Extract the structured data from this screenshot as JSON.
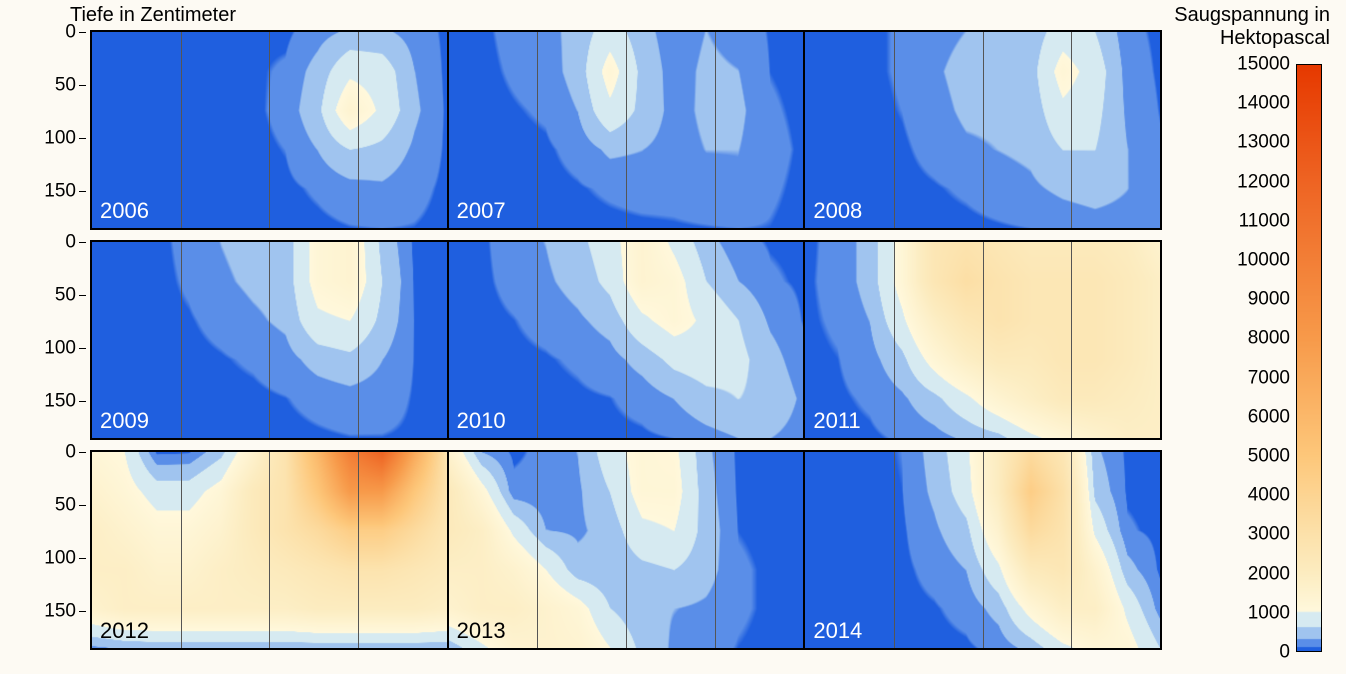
{
  "background_color": "#fdfaf3",
  "text_color": "#000000",
  "font_size_labels": 19,
  "font_size_titles": 20,
  "font_size_year": 22,
  "y_axis": {
    "title": "Tiefe in Zentimeter",
    "min": 0,
    "max": 185,
    "ticks": [
      0,
      50,
      100,
      150
    ]
  },
  "grid": {
    "quarter_lines": [
      0.25,
      0.5,
      0.75
    ],
    "line_color": "#555555",
    "line_width": 1
  },
  "colorbar": {
    "title": "Saugspannung in\nHektopascal",
    "min": 0,
    "max": 15000,
    "tick_step": 1000,
    "stops": [
      {
        "value": 0,
        "color": "#1f5fdf"
      },
      {
        "value": 90,
        "color": "#1f5fdf"
      },
      {
        "value": 100,
        "color": "#5a8ee8"
      },
      {
        "value": 290,
        "color": "#5a8ee8"
      },
      {
        "value": 300,
        "color": "#a0c4ef"
      },
      {
        "value": 590,
        "color": "#a0c4ef"
      },
      {
        "value": 600,
        "color": "#d6eaf1"
      },
      {
        "value": 990,
        "color": "#d6eaf1"
      },
      {
        "value": 1000,
        "color": "#fff8dc"
      },
      {
        "value": 2000,
        "color": "#fcecc0"
      },
      {
        "value": 3000,
        "color": "#fce1aa"
      },
      {
        "value": 5000,
        "color": "#fdc77a"
      },
      {
        "value": 8000,
        "color": "#f79a4a"
      },
      {
        "value": 12000,
        "color": "#ee6423"
      },
      {
        "value": 15000,
        "color": "#e63900"
      }
    ]
  },
  "rows": [
    {
      "cells": [
        {
          "year": "2006",
          "year_label_color": "white",
          "grid": [
            [
              40,
              40,
              40,
              40,
              60,
              70,
              60,
              200,
              350,
              350,
              200,
              60
            ],
            [
              40,
              40,
              40,
              40,
              60,
              70,
              120,
              400,
              900,
              800,
              300,
              60
            ],
            [
              40,
              40,
              40,
              40,
              50,
              60,
              150,
              500,
              1400,
              900,
              350,
              70
            ],
            [
              40,
              40,
              40,
              40,
              40,
              50,
              100,
              300,
              600,
              500,
              250,
              70
            ],
            [
              40,
              40,
              40,
              40,
              40,
              40,
              60,
              120,
              200,
              250,
              150,
              60
            ],
            [
              40,
              40,
              40,
              40,
              40,
              40,
              40,
              60,
              90,
              100,
              90,
              50
            ]
          ]
        },
        {
          "year": "2007",
          "year_label_color": "white",
          "grid": [
            [
              40,
              60,
              150,
              200,
              400,
              800,
              400,
              150,
              300,
              200,
              80,
              50
            ],
            [
              40,
              50,
              120,
              180,
              400,
              1200,
              500,
              180,
              350,
              300,
              90,
              50
            ],
            [
              40,
              40,
              80,
              120,
              300,
              900,
              500,
              200,
              350,
              350,
              120,
              60
            ],
            [
              40,
              40,
              50,
              70,
              150,
              350,
              300,
              200,
              300,
              300,
              150,
              70
            ],
            [
              40,
              40,
              40,
              50,
              80,
              120,
              150,
              150,
              200,
              250,
              120,
              60
            ],
            [
              40,
              40,
              40,
              40,
              50,
              60,
              70,
              80,
              90,
              100,
              90,
              50
            ]
          ]
        },
        {
          "year": "2008",
          "year_label_color": "white",
          "grid": [
            [
              40,
              50,
              60,
              120,
              200,
              300,
              350,
              400,
              800,
              600,
              150,
              60
            ],
            [
              40,
              50,
              60,
              120,
              250,
              400,
              400,
              450,
              1200,
              800,
              200,
              70
            ],
            [
              40,
              40,
              50,
              100,
              200,
              350,
              350,
              400,
              900,
              700,
              250,
              90
            ],
            [
              40,
              40,
              50,
              70,
              150,
              250,
              300,
              350,
              600,
              600,
              300,
              120
            ],
            [
              40,
              40,
              40,
              50,
              80,
              120,
              180,
              250,
              350,
              400,
              300,
              150
            ],
            [
              40,
              40,
              40,
              40,
              50,
              60,
              80,
              100,
              150,
              200,
              200,
              120
            ]
          ]
        }
      ]
    },
    {
      "cells": [
        {
          "year": "2009",
          "year_label_color": "white",
          "grid": [
            [
              50,
              50,
              50,
              150,
              300,
              400,
              400,
              1200,
              1400,
              500,
              60,
              50
            ],
            [
              50,
              50,
              50,
              120,
              250,
              350,
              400,
              1200,
              1400,
              600,
              80,
              50
            ],
            [
              50,
              50,
              50,
              80,
              150,
              250,
              350,
              900,
              1000,
              500,
              90,
              50
            ],
            [
              40,
              40,
              40,
              50,
              80,
              120,
              200,
              400,
              500,
              300,
              90,
              50
            ],
            [
              40,
              40,
              40,
              40,
              50,
              60,
              90,
              150,
              200,
              180,
              80,
              50
            ],
            [
              40,
              40,
              40,
              40,
              40,
              40,
              50,
              70,
              90,
              90,
              70,
              50
            ]
          ]
        },
        {
          "year": "2010",
          "year_label_color": "white",
          "grid": [
            [
              50,
              60,
              200,
              300,
              500,
              800,
              1400,
              900,
              400,
              150,
              80,
              60
            ],
            [
              50,
              60,
              150,
              250,
              400,
              700,
              1400,
              1200,
              600,
              300,
              120,
              70
            ],
            [
              50,
              50,
              90,
              150,
              250,
              400,
              900,
              1200,
              900,
              600,
              250,
              90
            ],
            [
              40,
              40,
              60,
              80,
              120,
              200,
              400,
              700,
              800,
              700,
              400,
              150
            ],
            [
              40,
              40,
              40,
              50,
              70,
              90,
              150,
              300,
              500,
              600,
              500,
              250
            ],
            [
              40,
              40,
              40,
              40,
              50,
              60,
              70,
              100,
              200,
              300,
              300,
              200
            ]
          ]
        },
        {
          "year": "2011",
          "year_label_color": "white",
          "grid": [
            [
              60,
              150,
              400,
              1200,
              2500,
              2800,
              2500,
              2200,
              2200,
              2200,
              2000,
              1500
            ],
            [
              70,
              150,
              400,
              1200,
              2500,
              3200,
              2800,
              2500,
              2500,
              2500,
              2200,
              1800
            ],
            [
              70,
              120,
              300,
              900,
              1800,
              2500,
              2800,
              2500,
              2500,
              2500,
              2200,
              1800
            ],
            [
              60,
              90,
              200,
              500,
              1200,
              1800,
              2200,
              2200,
              2500,
              2500,
              2200,
              1800
            ],
            [
              50,
              70,
              120,
              250,
              500,
              900,
              1400,
              1800,
              2200,
              2200,
              2000,
              1800
            ],
            [
              50,
              50,
              70,
              120,
              200,
              350,
              500,
              900,
              1200,
              1500,
              1800,
              1800
            ]
          ]
        }
      ]
    },
    {
      "cells": [
        {
          "year": "2012",
          "year_label_color": "dark",
          "grid": [
            [
              1200,
              1000,
              60,
              80,
              500,
              1500,
              2800,
              6000,
              10000,
              12000,
              7000,
              2800
            ],
            [
              1500,
              1200,
              800,
              800,
              1200,
              2200,
              2800,
              5000,
              8000,
              8000,
              5000,
              2800
            ],
            [
              1800,
              1500,
              1200,
              1200,
              1500,
              2200,
              2800,
              3500,
              4500,
              4500,
              3500,
              2500
            ],
            [
              1800,
              1800,
              1500,
              1500,
              1800,
              2000,
              2200,
              2500,
              2800,
              2800,
              2500,
              2200
            ],
            [
              1500,
              1800,
              1800,
              1800,
              1800,
              1800,
              1800,
              2000,
              2000,
              2000,
              2000,
              1800
            ],
            [
              250,
              350,
              400,
              400,
              400,
              400,
              400,
              400,
              400,
              400,
              400,
              400
            ]
          ]
        },
        {
          "year": "2013",
          "year_label_color": "dark",
          "grid": [
            [
              1500,
              300,
              60,
              150,
              300,
              800,
              1200,
              1100,
              350,
              60,
              50,
              40
            ],
            [
              2200,
              1200,
              150,
              150,
              250,
              600,
              1200,
              1200,
              400,
              70,
              50,
              40
            ],
            [
              2200,
              1800,
              900,
              300,
              250,
              400,
              900,
              1000,
              450,
              90,
              60,
              50
            ],
            [
              1800,
              1800,
              1500,
              1000,
              400,
              350,
              500,
              600,
              400,
              120,
              70,
              50
            ],
            [
              1500,
              1800,
              1800,
              1500,
              1200,
              600,
              350,
              300,
              250,
              120,
              70,
              50
            ],
            [
              400,
              900,
              1400,
              1500,
              1400,
              1000,
              500,
              250,
              150,
              90,
              60,
              50
            ]
          ]
        },
        {
          "year": "2014",
          "year_label_color": "white",
          "grid": [
            [
              40,
              50,
              60,
              100,
              400,
              900,
              2000,
              3500,
              2500,
              350,
              60,
              40
            ],
            [
              40,
              50,
              60,
              90,
              350,
              800,
              2000,
              4500,
              3000,
              500,
              70,
              40
            ],
            [
              40,
              40,
              50,
              70,
              250,
              500,
              1500,
              3500,
              2800,
              900,
              120,
              50
            ],
            [
              40,
              40,
              40,
              60,
              150,
              300,
              900,
              2200,
              2500,
              1500,
              400,
              70
            ],
            [
              40,
              40,
              40,
              50,
              80,
              150,
              400,
              1200,
              1800,
              1800,
              900,
              200
            ],
            [
              40,
              40,
              40,
              40,
              50,
              70,
              150,
              400,
              900,
              1200,
              1200,
              600
            ]
          ]
        }
      ]
    }
  ]
}
